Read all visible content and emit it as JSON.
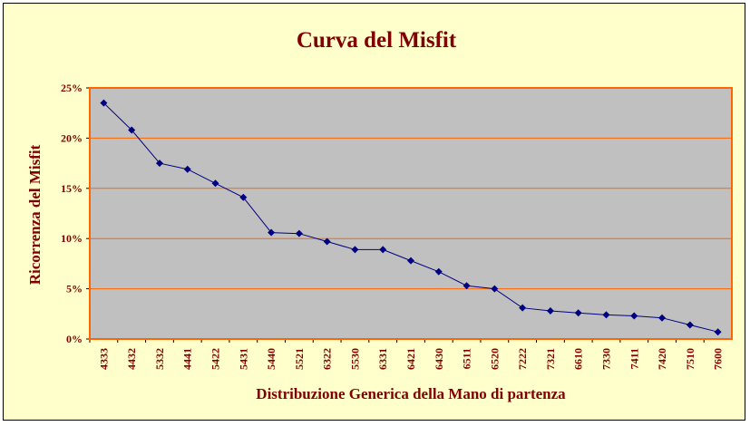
{
  "chart_data": {
    "type": "line",
    "title": "Curva del Misfit",
    "xlabel": "Distribuzione Generica della Mano di partenza",
    "ylabel": "Ricorrenza del Misfit",
    "categories": [
      "4333",
      "4432",
      "5332",
      "4441",
      "5422",
      "5431",
      "5440",
      "5521",
      "6322",
      "5530",
      "6331",
      "6421",
      "6430",
      "6511",
      "6520",
      "7222",
      "7321",
      "6610",
      "7330",
      "7411",
      "7420",
      "7510",
      "7600"
    ],
    "series": [
      {
        "values": [
          23.5,
          20.8,
          17.5,
          16.9,
          15.5,
          14.1,
          10.6,
          10.5,
          9.7,
          8.9,
          8.9,
          7.8,
          6.7,
          5.3,
          5.0,
          3.1,
          2.8,
          2.6,
          2.4,
          2.3,
          2.1,
          1.4,
          0.7
        ]
      }
    ],
    "ylim": [
      0,
      25
    ],
    "yticks": [
      0,
      5,
      10,
      15,
      20,
      25
    ],
    "ytick_labels": [
      "0%",
      "5%",
      "10%",
      "15%",
      "20%",
      "25%"
    ],
    "grid": true,
    "colors": {
      "background": "#ffffcc",
      "plot_area": "#c0c0c0",
      "plot_border": "#ff6600",
      "gridline": "#ff6600",
      "line": "#000080",
      "text": "#800000"
    }
  }
}
